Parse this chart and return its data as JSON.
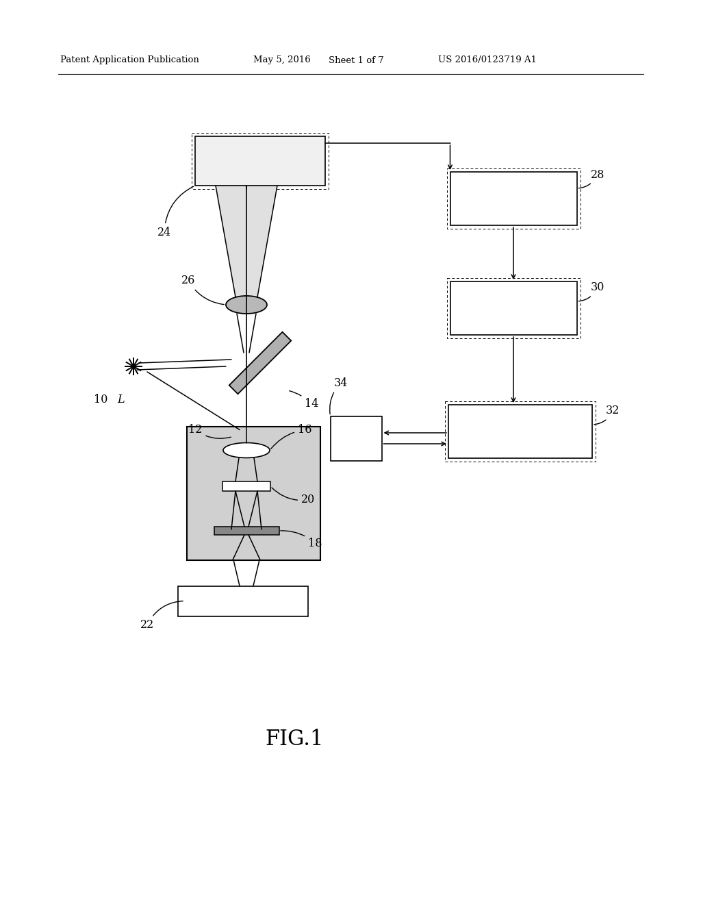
{
  "bg": "#ffffff",
  "header_left": "Patent Application Publication",
  "header_mid1": "May 5, 2016",
  "header_mid2": "Sheet 1 of 7",
  "header_right": "US 2016/0123719 A1",
  "fig_label": "FIG.1",
  "gray_light": "#d0d0d0",
  "gray_med": "#b0b0b0",
  "gray_dark": "#888888",
  "gray_lens": "#b8b8b8",
  "box24_fc": "#f0f0f0"
}
